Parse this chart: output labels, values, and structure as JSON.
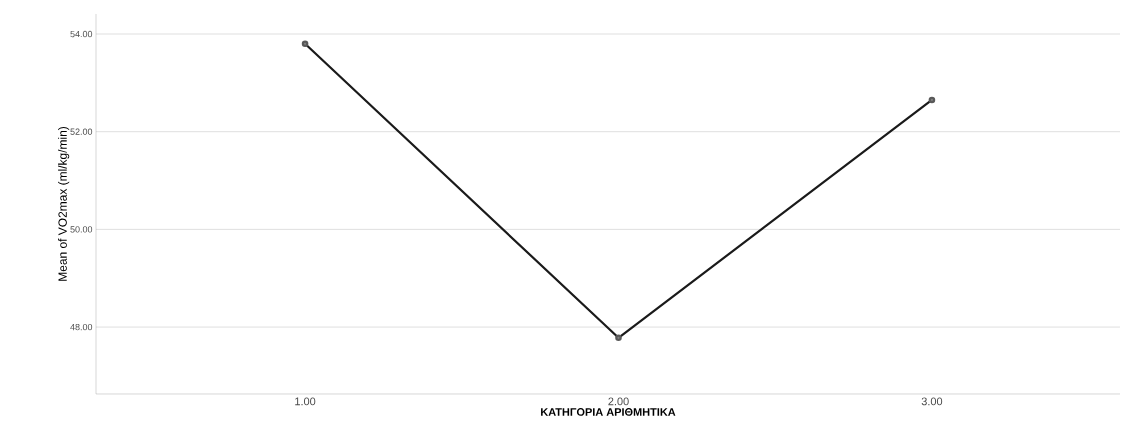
{
  "chart_data": {
    "type": "line",
    "xlabel": "ΚΑΤΗΓΟΡΙΑ ΑΡΙΘΜΗΤΙΚΑ",
    "ylabel": "Mean of VO2max (ml/kg/min)",
    "categories": [
      "1.00",
      "2.00",
      "3.00"
    ],
    "series": [
      {
        "color": "#1a1a1a",
        "values": [
          53.8,
          47.78,
          52.65
        ]
      }
    ],
    "ylim": [
      46.63,
      54.41
    ],
    "yticks": [
      {
        "value": 48,
        "label": "48.00"
      },
      {
        "value": 50,
        "label": "50.00"
      },
      {
        "value": 52,
        "label": "52.00"
      },
      {
        "value": 54,
        "label": "54.00"
      }
    ],
    "grid": "y",
    "marker": "circle",
    "line_style": "solid"
  }
}
